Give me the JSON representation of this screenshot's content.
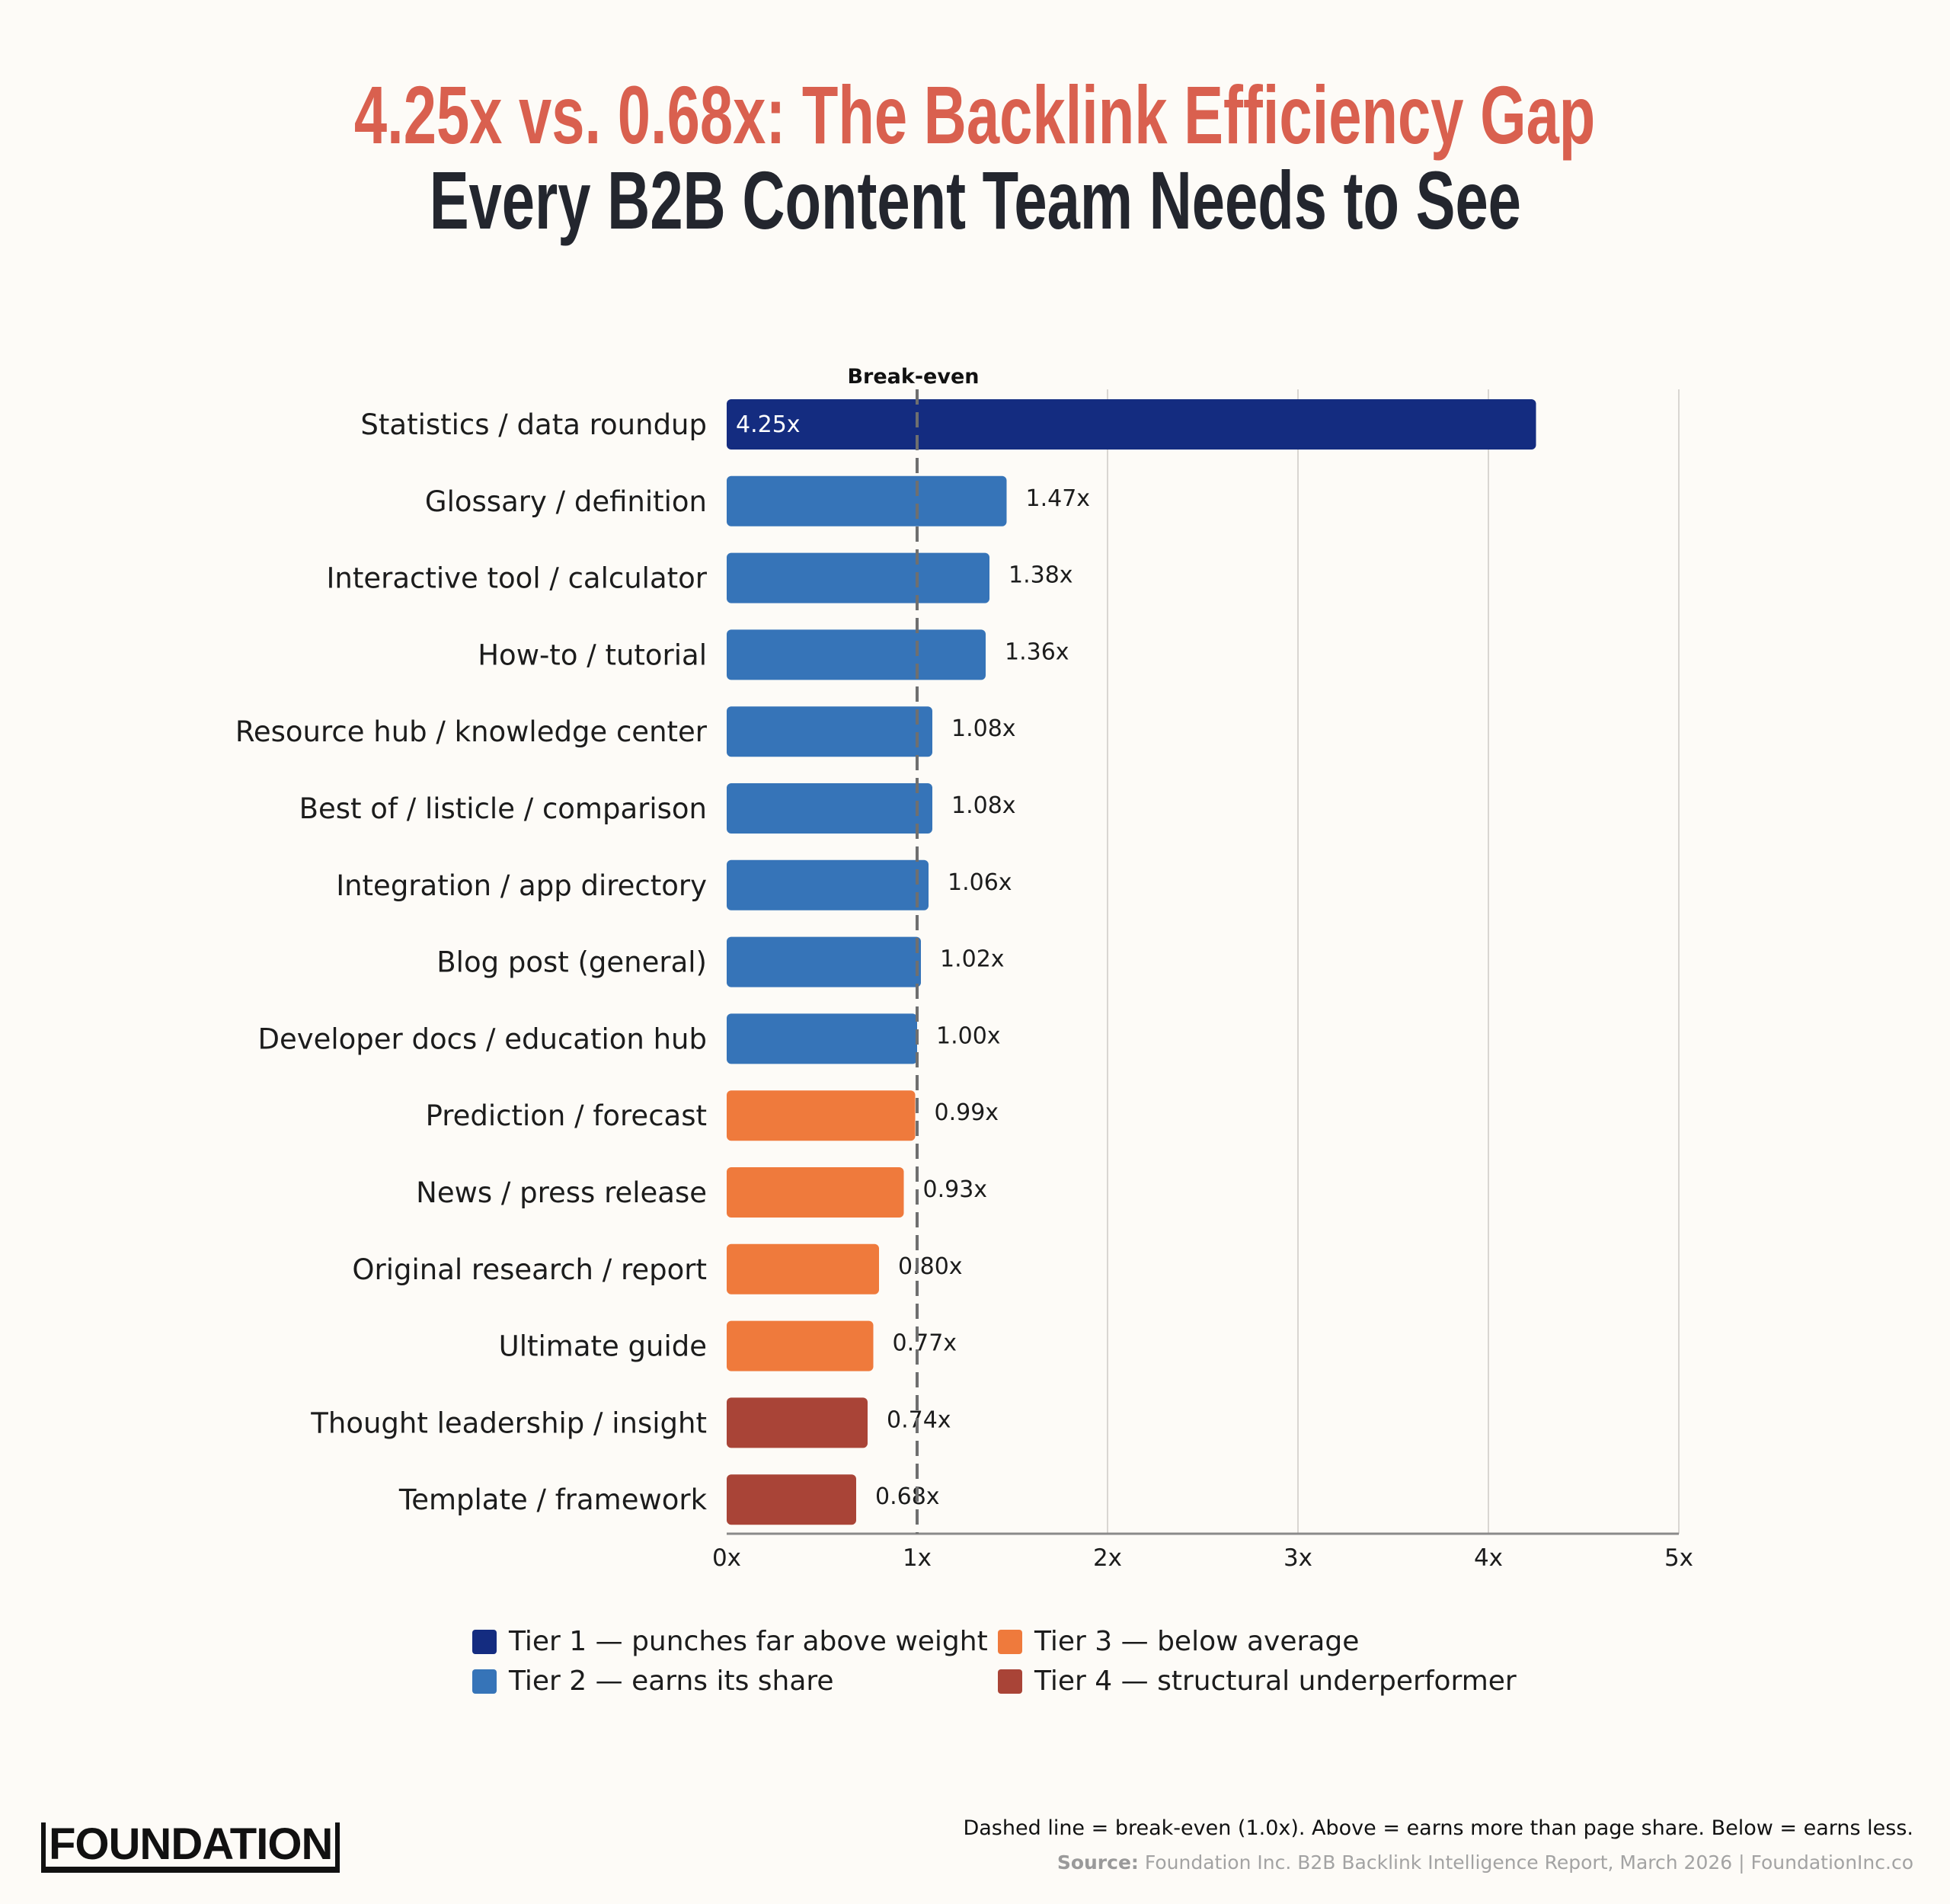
{
  "title": {
    "line1": "4.25x vs. 0.68x: The Backlink Efficiency Gap",
    "line2": "Every B2B Content Team Needs to See"
  },
  "chart_data": {
    "type": "bar",
    "orientation": "horizontal",
    "categories": [
      "Statistics / data roundup",
      "Glossary / definition",
      "Interactive tool / calculator",
      "How-to / tutorial",
      "Resource hub / knowledge center",
      "Best of / listicle / comparison",
      "Integration / app directory",
      "Blog post (general)",
      "Developer docs / education hub",
      "Prediction / forecast",
      "News / press release",
      "Original research / report",
      "Ultimate guide",
      "Thought leadership / insight",
      "Template / framework"
    ],
    "values": [
      4.25,
      1.47,
      1.38,
      1.36,
      1.08,
      1.08,
      1.06,
      1.02,
      1.0,
      0.99,
      0.93,
      0.8,
      0.77,
      0.74,
      0.68
    ],
    "labels": [
      "4.25x",
      "1.47x",
      "1.38x",
      "1.36x",
      "1.08x",
      "1.08x",
      "1.06x",
      "1.02x",
      "1.00x",
      "0.99x",
      "0.93x",
      "0.80x",
      "0.77x",
      "0.74x",
      "0.68x"
    ],
    "tiers": [
      1,
      2,
      2,
      2,
      2,
      2,
      2,
      2,
      2,
      3,
      3,
      3,
      3,
      4,
      4
    ],
    "xlim": [
      0,
      5
    ],
    "xticks": [
      "0x",
      "1x",
      "2x",
      "3x",
      "4x",
      "5x"
    ],
    "grid": "vertical",
    "reference_line": {
      "value": 1.0,
      "label": "Break-even",
      "style": "dashed"
    },
    "legend": [
      {
        "tier": 1,
        "label": "Tier 1 — punches far above weight",
        "color": "#142c80"
      },
      {
        "tier": 2,
        "label": "Tier 2 — earns its share",
        "color": "#3674b8"
      },
      {
        "tier": 3,
        "label": "Tier 3 — below average",
        "color": "#ef7a3c"
      },
      {
        "tier": 4,
        "label": "Tier 4 — structural underperformer",
        "color": "#a94437"
      }
    ],
    "legend_position": "bottom"
  },
  "footer": {
    "logo": "FOUNDATION",
    "note": "Dashed line = break-even (1.0x). Above = earns more than page share. Below = earns less.",
    "source_label": "Source:",
    "source_text": " Foundation Inc. B2B Backlink Intelligence Report, March 2026 | FoundationInc.co"
  }
}
